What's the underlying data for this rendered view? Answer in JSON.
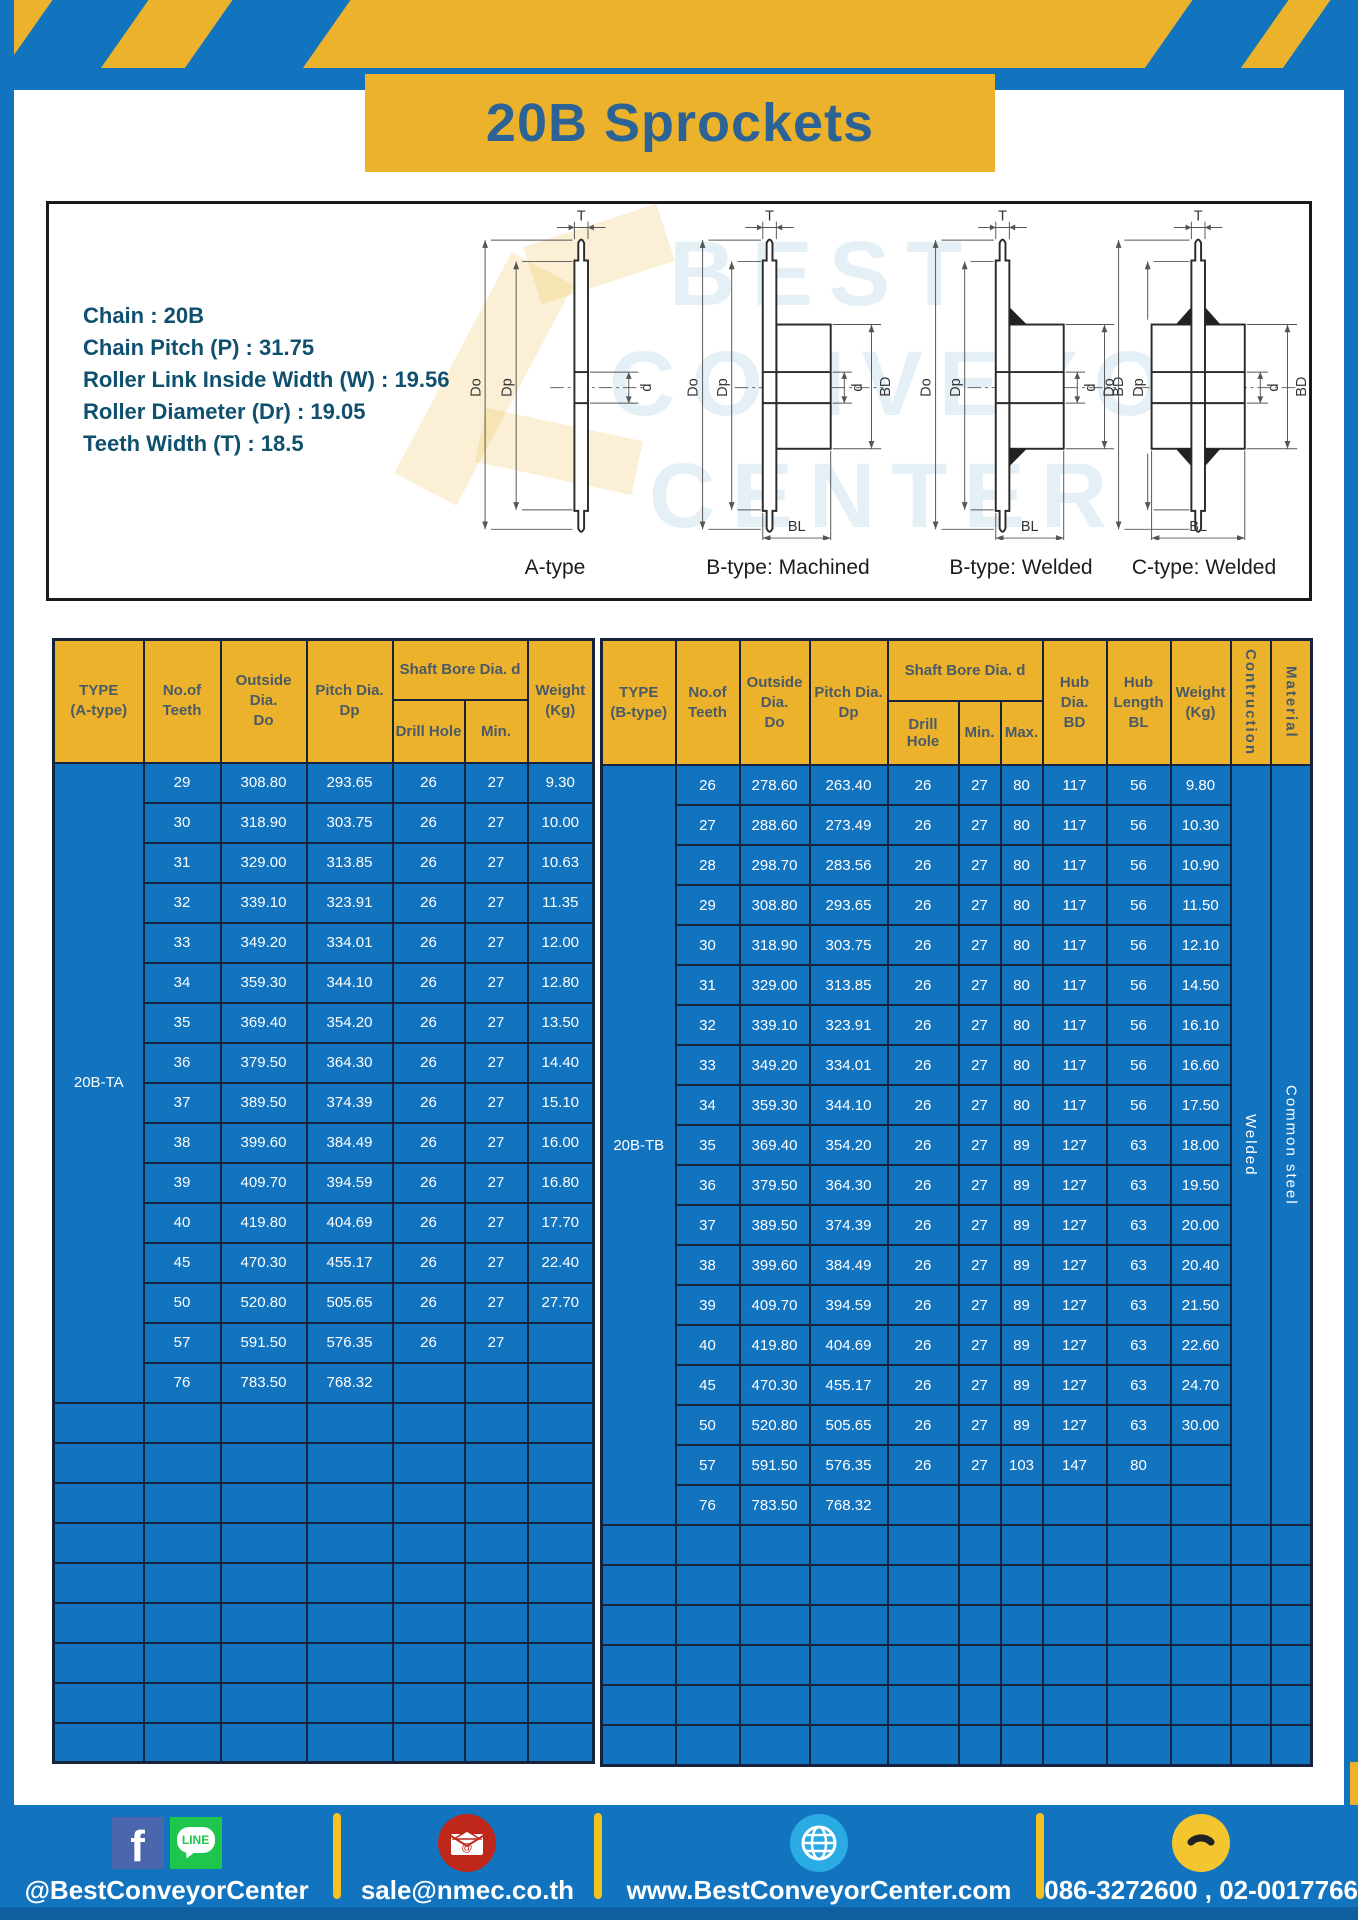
{
  "colors": {
    "blue": "#1273bf",
    "yellow": "#ecb22b",
    "grid_navy": "#16233c",
    "title_text": "#2d6394",
    "spec_text": "#0f506e"
  },
  "header": {
    "title": "20B Sprockets"
  },
  "diagram_panel": {
    "spec_lines": [
      "Chain : 20B",
      "Chain Pitch (P) : 31.75",
      "Roller Link Inside Width (W) : 19.56",
      "Roller Diameter (Dr) : 19.05",
      "Teeth Width (T) : 18.5"
    ],
    "captions": [
      "A-type",
      "B-type: Machined",
      "B-type: Welded",
      "C-type: Welded"
    ],
    "dims": {
      "t": "T",
      "outside": "Do",
      "pitch": "Dp",
      "bore": "d",
      "hub_dia": "BD",
      "hub_len": "BL"
    },
    "watermark": [
      "BEST",
      "CONVEYOR",
      "CENTER"
    ]
  },
  "table_a": {
    "header": {
      "type1": "TYPE",
      "type2": "(A-type)",
      "teeth1": "No.of",
      "teeth2": "Teeth",
      "outside1": "Outside",
      "outside2": "Dia.",
      "outside3": "Do",
      "pitch1": "Pitch Dia.",
      "pitch2": "Dp",
      "shaft_bore": "Shaft Bore Dia. d",
      "drill": "Drill Hole",
      "min": "Min.",
      "weight1": "Weight",
      "weight2": "(Kg)"
    },
    "type_label": "20B-TA",
    "rows": [
      [
        "29",
        "308.80",
        "293.65",
        "26",
        "27",
        "9.30"
      ],
      [
        "30",
        "318.90",
        "303.75",
        "26",
        "27",
        "10.00"
      ],
      [
        "31",
        "329.00",
        "313.85",
        "26",
        "27",
        "10.63"
      ],
      [
        "32",
        "339.10",
        "323.91",
        "26",
        "27",
        "11.35"
      ],
      [
        "33",
        "349.20",
        "334.01",
        "26",
        "27",
        "12.00"
      ],
      [
        "34",
        "359.30",
        "344.10",
        "26",
        "27",
        "12.80"
      ],
      [
        "35",
        "369.40",
        "354.20",
        "26",
        "27",
        "13.50"
      ],
      [
        "36",
        "379.50",
        "364.30",
        "26",
        "27",
        "14.40"
      ],
      [
        "37",
        "389.50",
        "374.39",
        "26",
        "27",
        "15.10"
      ],
      [
        "38",
        "399.60",
        "384.49",
        "26",
        "27",
        "16.00"
      ],
      [
        "39",
        "409.70",
        "394.59",
        "26",
        "27",
        "16.80"
      ],
      [
        "40",
        "419.80",
        "404.69",
        "26",
        "27",
        "17.70"
      ],
      [
        "45",
        "470.30",
        "455.17",
        "26",
        "27",
        "22.40"
      ],
      [
        "50",
        "520.80",
        "505.65",
        "26",
        "27",
        "27.70"
      ],
      [
        "57",
        "591.50",
        "576.35",
        "26",
        "27",
        ""
      ],
      [
        "76",
        "783.50",
        "768.32",
        "",
        "",
        ""
      ]
    ],
    "empty_rows": 9
  },
  "table_b": {
    "header": {
      "type1": "TYPE",
      "type2": "(B-type)",
      "teeth1": "No.of",
      "teeth2": "Teeth",
      "outside1": "Outside",
      "outside2": "Dia.",
      "outside3": "Do",
      "pitch1": "Pitch Dia.",
      "pitch2": "Dp",
      "shaft_bore": "Shaft Bore Dia. d",
      "drill": "Drill Hole",
      "min": "Min.",
      "max": "Max.",
      "hub_dia1": "Hub Dia.",
      "hub_dia2": "BD",
      "hub_len1": "Hub",
      "hub_len2": "Length",
      "hub_len3": "BL",
      "weight1": "Weight",
      "weight2": "(Kg)",
      "construction": "Contruction",
      "material": "Material"
    },
    "type_label": "20B-TB",
    "construction": "Welded",
    "material": "Common steel",
    "rows": [
      [
        "26",
        "278.60",
        "263.40",
        "26",
        "27",
        "80",
        "117",
        "56",
        "9.80"
      ],
      [
        "27",
        "288.60",
        "273.49",
        "26",
        "27",
        "80",
        "117",
        "56",
        "10.30"
      ],
      [
        "28",
        "298.70",
        "283.56",
        "26",
        "27",
        "80",
        "117",
        "56",
        "10.90"
      ],
      [
        "29",
        "308.80",
        "293.65",
        "26",
        "27",
        "80",
        "117",
        "56",
        "11.50"
      ],
      [
        "30",
        "318.90",
        "303.75",
        "26",
        "27",
        "80",
        "117",
        "56",
        "12.10"
      ],
      [
        "31",
        "329.00",
        "313.85",
        "26",
        "27",
        "80",
        "117",
        "56",
        "14.50"
      ],
      [
        "32",
        "339.10",
        "323.91",
        "26",
        "27",
        "80",
        "117",
        "56",
        "16.10"
      ],
      [
        "33",
        "349.20",
        "334.01",
        "26",
        "27",
        "80",
        "117",
        "56",
        "16.60"
      ],
      [
        "34",
        "359.30",
        "344.10",
        "26",
        "27",
        "80",
        "117",
        "56",
        "17.50"
      ],
      [
        "35",
        "369.40",
        "354.20",
        "26",
        "27",
        "89",
        "127",
        "63",
        "18.00"
      ],
      [
        "36",
        "379.50",
        "364.30",
        "26",
        "27",
        "89",
        "127",
        "63",
        "19.50"
      ],
      [
        "37",
        "389.50",
        "374.39",
        "26",
        "27",
        "89",
        "127",
        "63",
        "20.00"
      ],
      [
        "38",
        "399.60",
        "384.49",
        "26",
        "27",
        "89",
        "127",
        "63",
        "20.40"
      ],
      [
        "39",
        "409.70",
        "394.59",
        "26",
        "27",
        "89",
        "127",
        "63",
        "21.50"
      ],
      [
        "40",
        "419.80",
        "404.69",
        "26",
        "27",
        "89",
        "127",
        "63",
        "22.60"
      ],
      [
        "45",
        "470.30",
        "455.17",
        "26",
        "27",
        "89",
        "127",
        "63",
        "24.70"
      ],
      [
        "50",
        "520.80",
        "505.65",
        "26",
        "27",
        "89",
        "127",
        "63",
        "30.00"
      ],
      [
        "57",
        "591.50",
        "576.35",
        "26",
        "27",
        "103",
        "147",
        "80",
        ""
      ],
      [
        "76",
        "783.50",
        "768.32",
        "",
        "",
        "",
        "",
        "",
        ""
      ]
    ],
    "empty_rows": 6
  },
  "footer": {
    "facebook_label": "f",
    "line_label": "LINE",
    "sections": [
      {
        "text": "@BestConveyorCenter"
      },
      {
        "text": "sale@nmec.co.th"
      },
      {
        "text": "www.BestConveyorCenter.com"
      },
      {
        "text": "086-3272600 , 02-0017766"
      }
    ]
  }
}
